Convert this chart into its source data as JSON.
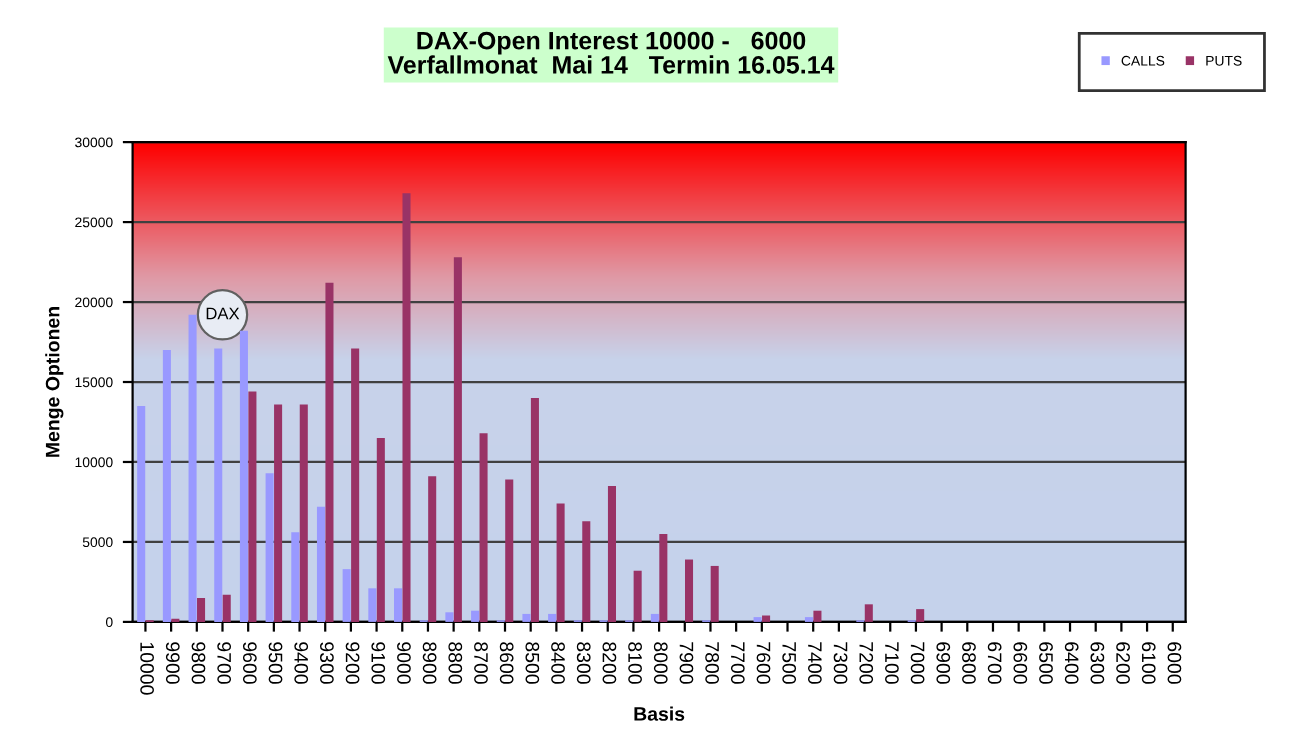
{
  "chart_data": {
    "type": "bar",
    "title": "DAX-Open Interest 10000 -   6000\nVerfallmonat  Mai 14   Termin 16.05.14",
    "xlabel": "Basis",
    "ylabel": "Menge Optionen",
    "categories": [
      "10000",
      "9900",
      "9800",
      "9700",
      "9600",
      "9500",
      "9400",
      "9300",
      "9200",
      "9100",
      "9000",
      "8900",
      "8800",
      "8700",
      "8600",
      "8500",
      "8400",
      "8300",
      "8200",
      "8100",
      "8000",
      "7900",
      "7800",
      "7700",
      "7600",
      "7500",
      "7400",
      "7300",
      "7200",
      "7100",
      "7000",
      "6900",
      "6800",
      "6700",
      "6600",
      "6500",
      "6400",
      "6300",
      "6200",
      "6100",
      "6000"
    ],
    "series": [
      {
        "name": "CALLS",
        "color": "#9999ff",
        "values": [
          13500,
          17000,
          19200,
          17100,
          18200,
          9300,
          5600,
          7200,
          3300,
          2100,
          2100,
          100,
          600,
          700,
          100,
          500,
          500,
          100,
          100,
          100,
          500,
          0,
          100,
          0,
          300,
          0,
          300,
          0,
          100,
          0,
          100,
          0,
          0,
          0,
          0,
          0,
          0,
          0,
          0,
          0,
          0
        ]
      },
      {
        "name": "PUTS",
        "color": "#993366",
        "values": [
          100,
          200,
          1500,
          1700,
          14400,
          13600,
          13600,
          21200,
          17100,
          11500,
          26800,
          9100,
          22800,
          11800,
          8900,
          14000,
          7400,
          6300,
          8500,
          3200,
          5500,
          3900,
          3500,
          0,
          400,
          0,
          700,
          0,
          1100,
          0,
          800,
          0,
          0,
          0,
          0,
          0,
          0,
          0,
          0,
          0,
          0
        ]
      }
    ],
    "ylim": [
      0,
      30000
    ],
    "yticks": [
      0,
      5000,
      10000,
      15000,
      20000,
      25000,
      30000
    ],
    "grid": "y",
    "legend": "top right",
    "annotations": [
      {
        "text": "DAX",
        "x": "9700",
        "y": 19200
      }
    ]
  }
}
